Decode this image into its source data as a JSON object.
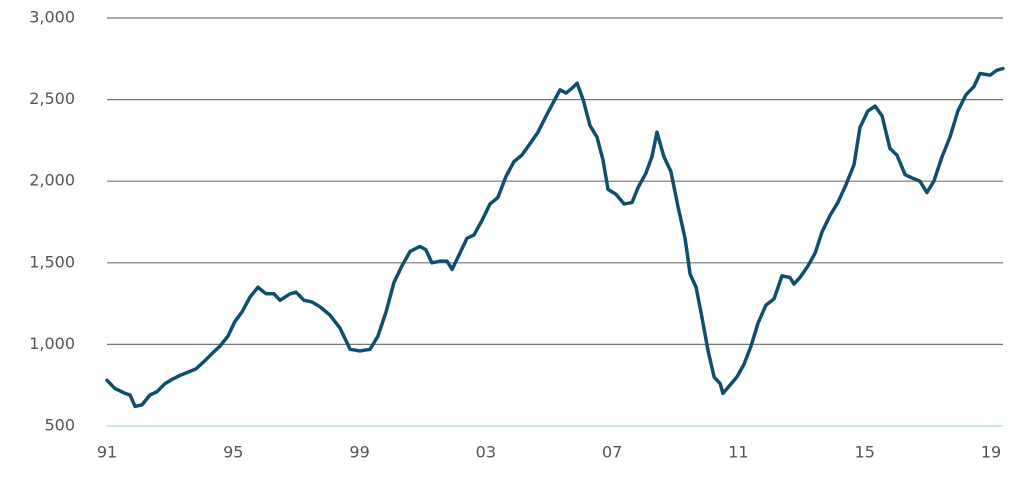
{
  "chart_data": {
    "type": "line",
    "x": [
      1991.0,
      1991.25,
      1991.57,
      1991.73,
      1991.89,
      1992.11,
      1992.36,
      1992.58,
      1992.84,
      1993.06,
      1993.31,
      1993.57,
      1993.82,
      1994.1,
      1994.36,
      1994.58,
      1994.83,
      1995.05,
      1995.28,
      1995.53,
      1995.78,
      1996.04,
      1996.29,
      1996.48,
      1996.8,
      1996.99,
      1997.24,
      1997.49,
      1997.75,
      1998.06,
      1998.38,
      1998.7,
      1999.01,
      1999.33,
      1999.58,
      1999.84,
      2000.09,
      2000.34,
      2000.6,
      2000.91,
      2001.1,
      2001.29,
      2001.55,
      2001.77,
      2001.93,
      2002.18,
      2002.4,
      2002.62,
      2002.88,
      2003.13,
      2003.38,
      2003.64,
      2003.89,
      2004.14,
      2004.4,
      2004.65,
      2004.91,
      2005.13,
      2005.35,
      2005.54,
      2005.73,
      2005.89,
      2006.08,
      2006.3,
      2006.52,
      2006.71,
      2006.87,
      2007.12,
      2007.38,
      2007.63,
      2007.82,
      2008.07,
      2008.26,
      2008.42,
      2008.64,
      2008.86,
      2009.08,
      2009.31,
      2009.47,
      2009.66,
      2009.85,
      2010.04,
      2010.23,
      2010.42,
      2010.51,
      2010.73,
      2010.95,
      2011.18,
      2011.4,
      2011.62,
      2011.87,
      2012.13,
      2012.38,
      2012.63,
      2012.76,
      2012.95,
      2013.2,
      2013.43,
      2013.65,
      2013.9,
      2014.15,
      2014.41,
      2014.66,
      2014.85,
      2015.1,
      2015.33,
      2015.55,
      2015.8,
      2016.02,
      2016.28,
      2016.5,
      2016.75,
      2016.97,
      2017.19,
      2017.45,
      2017.7,
      2017.95,
      2018.21,
      2018.46,
      2018.65,
      2018.97,
      2019.19,
      2019.38
    ],
    "series": [
      {
        "color": "#0f4f6e",
        "values": [
          780,
          730,
          700,
          690,
          620,
          630,
          690,
          710,
          760,
          785,
          810,
          830,
          850,
          900,
          950,
          990,
          1050,
          1140,
          1200,
          1290,
          1350,
          1310,
          1310,
          1270,
          1310,
          1320,
          1270,
          1260,
          1230,
          1180,
          1100,
          970,
          960,
          970,
          1050,
          1200,
          1380,
          1480,
          1570,
          1600,
          1580,
          1500,
          1510,
          1510,
          1460,
          1560,
          1650,
          1670,
          1760,
          1860,
          1900,
          2030,
          2120,
          2160,
          2230,
          2300,
          2400,
          2480,
          2560,
          2540,
          2570,
          2600,
          2500,
          2340,
          2270,
          2130,
          1950,
          1920,
          1860,
          1870,
          1960,
          2050,
          2150,
          2300,
          2150,
          2060,
          1850,
          1650,
          1430,
          1350,
          1160,
          960,
          800,
          760,
          700,
          750,
          800,
          880,
          990,
          1130,
          1240,
          1280,
          1420,
          1410,
          1370,
          1410,
          1480,
          1560,
          1690,
          1790,
          1870,
          1980,
          2100,
          2330,
          2430,
          2460,
          2400,
          2200,
          2160,
          2040,
          2020,
          2000,
          1930,
          2000,
          2150,
          2270,
          2430,
          2530,
          2580,
          2660,
          2650,
          2680,
          2690
        ]
      }
    ],
    "xlim": [
      1991,
      2019.38
    ],
    "xticks": [
      {
        "value": 1991,
        "label": "91"
      },
      {
        "value": 1995,
        "label": "95"
      },
      {
        "value": 1999,
        "label": "99"
      },
      {
        "value": 2003,
        "label": "03"
      },
      {
        "value": 2007,
        "label": "07"
      },
      {
        "value": 2011,
        "label": "11"
      },
      {
        "value": 2015,
        "label": "15"
      },
      {
        "value": 2019,
        "label": "19"
      }
    ],
    "ylim": [
      500,
      3000
    ],
    "yticks": [
      500,
      {
        "value": 1000,
        "label": "1,000"
      },
      {
        "value": 1500,
        "label": "1,500"
      },
      {
        "value": 2000,
        "label": "2,000"
      },
      {
        "value": 2500,
        "label": "2,500"
      },
      {
        "value": 3000,
        "label": "3,000"
      }
    ],
    "grid": true
  }
}
